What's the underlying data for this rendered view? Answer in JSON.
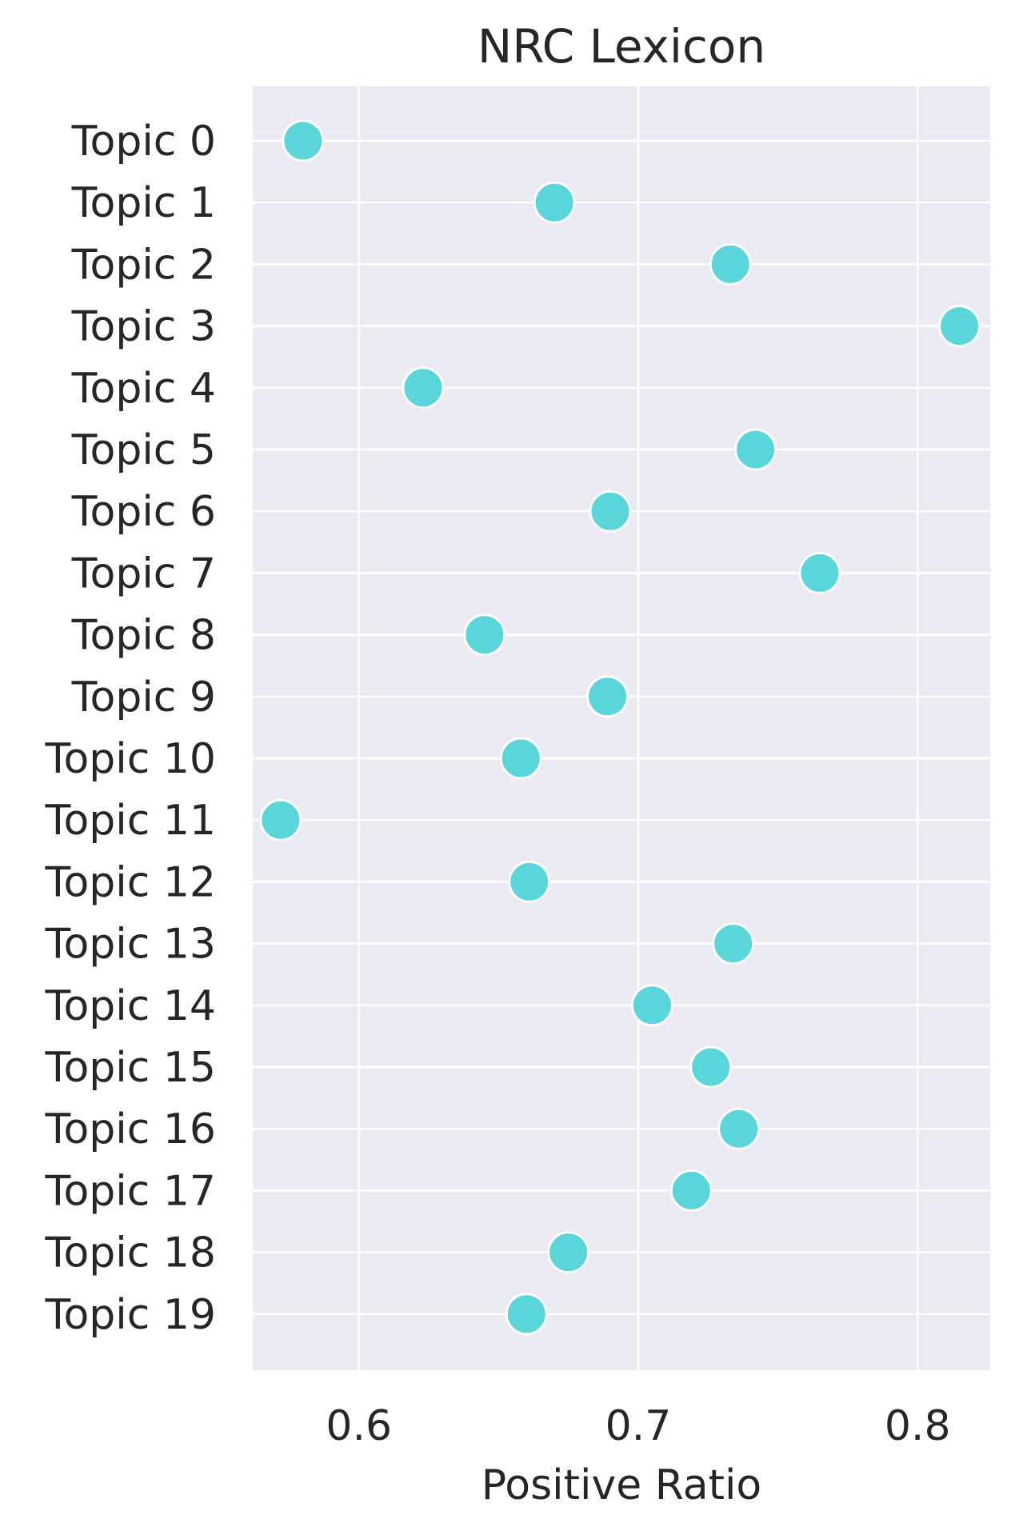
{
  "chart_data": {
    "type": "scatter",
    "title": "NRC Lexicon",
    "xlabel": "Positive Ratio",
    "ylabel": "",
    "xlim": [
      0.562,
      0.826
    ],
    "xticks": [
      0.6,
      0.7,
      0.8
    ],
    "xtick_labels": [
      "0.6",
      "0.7",
      "0.8"
    ],
    "grid": true,
    "marker_color": "#5AD6DA",
    "background_color": "#EAEAF2",
    "categories": [
      "Topic 0",
      "Topic 1",
      "Topic 2",
      "Topic 3",
      "Topic 4",
      "Topic 5",
      "Topic 6",
      "Topic 7",
      "Topic 8",
      "Topic 9",
      "Topic 10",
      "Topic 11",
      "Topic 12",
      "Topic 13",
      "Topic 14",
      "Topic 15",
      "Topic 16",
      "Topic 17",
      "Topic 18",
      "Topic 19"
    ],
    "values": [
      0.58,
      0.67,
      0.733,
      0.815,
      0.623,
      0.742,
      0.69,
      0.765,
      0.645,
      0.689,
      0.658,
      0.572,
      0.661,
      0.734,
      0.705,
      0.726,
      0.736,
      0.719,
      0.675,
      0.66
    ]
  }
}
